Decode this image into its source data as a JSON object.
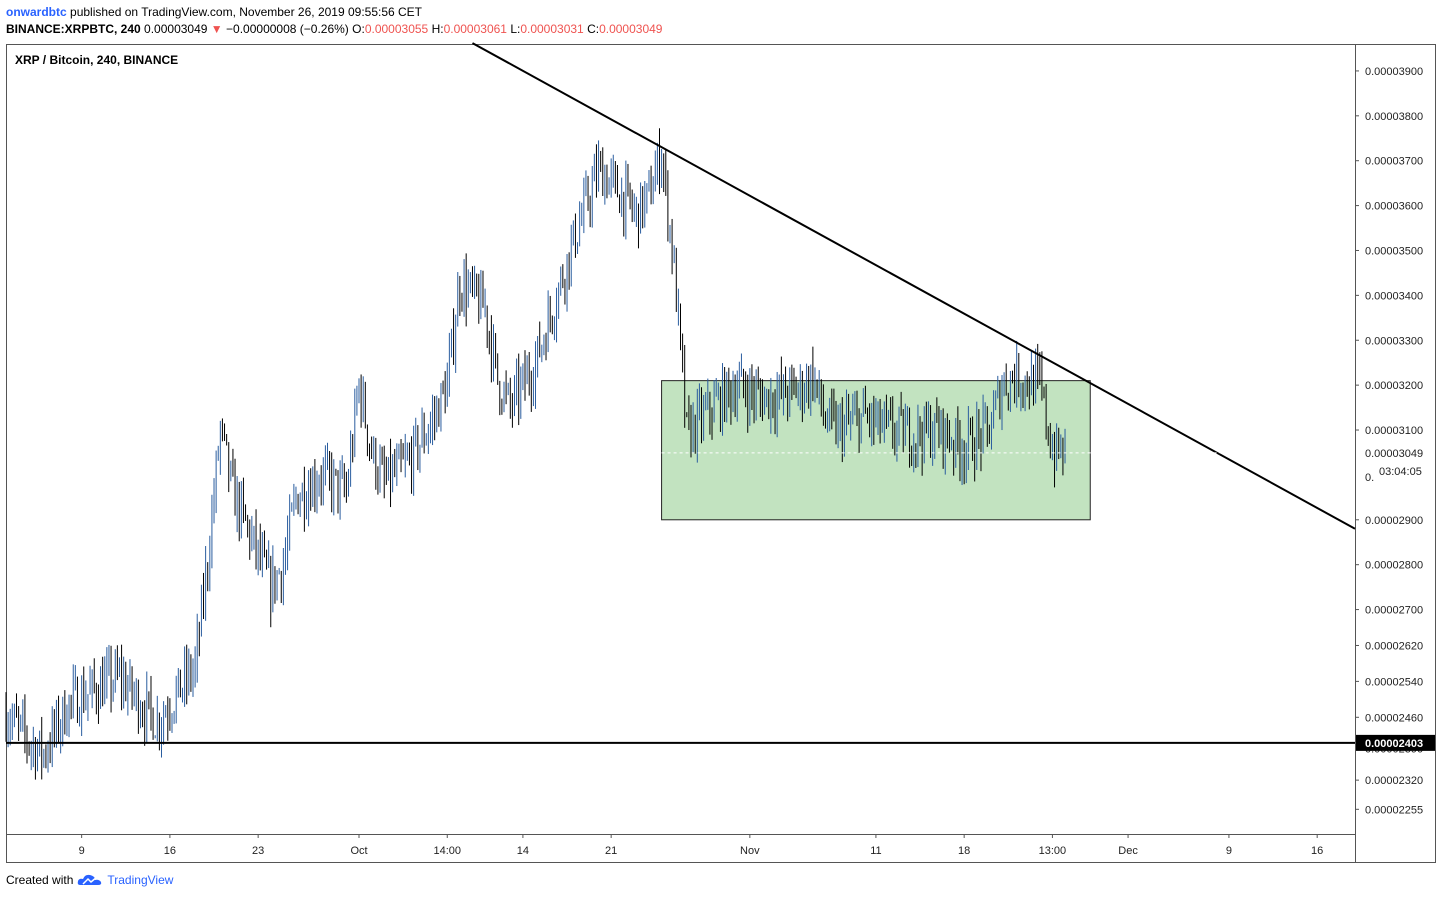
{
  "header": {
    "author": "onwardbtc",
    "published": "published on TradingView.com, November 26, 2019 09:55:56 CET",
    "symbol": "BINANCE:XRPBTC, 240",
    "last": "0.00003049",
    "change": "−0.00000008 (−0.26%)",
    "o_label": "O:",
    "o_value": "0.00003055",
    "h_label": "H:",
    "h_value": "0.00003061",
    "l_label": "L:",
    "l_value": "0.00003031",
    "c_label": "C:",
    "c_value": "0.00003049"
  },
  "footer": {
    "created_with": "Created with",
    "brand": "TradingView"
  },
  "colors": {
    "up": "#2a5d9f",
    "down": "#000000",
    "box_fill": "#c2e3c0",
    "accent": "#ef5350"
  },
  "chart_data": {
    "type": "candlestick",
    "title": "XRP / Bitcoin, 240, BINANCE",
    "ylim": [
      2.2e-05,
      3.96e-05
    ],
    "x_range": [
      "2019-09-03",
      "2019-12-19"
    ],
    "y_ticks": [
      "0.00003900",
      "0.00003800",
      "0.00003700",
      "0.00003600",
      "0.00003500",
      "0.00003400",
      "0.00003300",
      "0.00003200",
      "0.00003100",
      "0.00002900",
      "0.00002800",
      "0.00002700",
      "0.00002620",
      "0.00002540",
      "0.00002460",
      "0.00002390",
      "0.00002320",
      "0.00002255"
    ],
    "y_tick_values": [
      3.9e-05,
      3.8e-05,
      3.7e-05,
      3.6e-05,
      3.5e-05,
      3.4e-05,
      3.3e-05,
      3.2e-05,
      3.1e-05,
      2.9e-05,
      2.8e-05,
      2.7e-05,
      2.62e-05,
      2.54e-05,
      2.46e-05,
      2.39e-05,
      2.32e-05,
      2.255e-05
    ],
    "x_ticks": [
      "9",
      "16",
      "23",
      "Oct",
      "14:00",
      "14",
      "21",
      "Nov",
      "11",
      "18",
      "13:00",
      "Dec",
      "9",
      "16"
    ],
    "x_tick_dates": [
      "2019-09-09",
      "2019-09-16",
      "2019-09-23",
      "2019-10-01",
      "2019-10-08",
      "2019-10-14",
      "2019-10-21",
      "2019-11-01",
      "2019-11-11",
      "2019-11-18",
      "2019-11-25",
      "2019-12-01",
      "2019-12-09",
      "2019-12-16"
    ],
    "current_price": {
      "value": 3.049e-05,
      "label": "0.00003049",
      "countdown": "03:04:05",
      "hidden_label": "0."
    },
    "support_line": {
      "value": 2.403e-05,
      "label": "0.00002403"
    },
    "trendline": {
      "from": {
        "date": "2019-10-10",
        "price": 3.962e-05
      },
      "to": {
        "date": "2019-12-19",
        "price": 2.88e-05
      }
    },
    "range_box": {
      "from_date": "2019-10-25",
      "to_date": "2019-11-28",
      "top": 3.21e-05,
      "bottom": 2.9e-05
    },
    "price_path": [
      [
        "2019-09-03",
        2.47e-05
      ],
      [
        "2019-09-05",
        2.4e-05
      ],
      [
        "2019-09-06",
        2.38e-05
      ],
      [
        "2019-09-08",
        2.49e-05
      ],
      [
        "2019-09-10",
        2.52e-05
      ],
      [
        "2019-09-12",
        2.55e-05
      ],
      [
        "2019-09-14",
        2.48e-05
      ],
      [
        "2019-09-15",
        2.45e-05
      ],
      [
        "2019-09-17",
        2.53e-05
      ],
      [
        "2019-09-18",
        2.57e-05
      ],
      [
        "2019-09-19",
        2.81e-05
      ],
      [
        "2019-09-20",
        3.1e-05
      ],
      [
        "2019-09-21",
        2.96e-05
      ],
      [
        "2019-09-22",
        2.89e-05
      ],
      [
        "2019-09-24",
        2.75e-05
      ],
      [
        "2019-09-25",
        2.8e-05
      ],
      [
        "2019-09-26",
        2.95e-05
      ],
      [
        "2019-09-28",
        3e-05
      ],
      [
        "2019-09-30",
        2.96e-05
      ],
      [
        "2019-10-01",
        3.2e-05
      ],
      [
        "2019-10-02",
        3.05e-05
      ],
      [
        "2019-10-03",
        2.98e-05
      ],
      [
        "2019-10-05",
        3.03e-05
      ],
      [
        "2019-10-07",
        3.13e-05
      ],
      [
        "2019-10-08",
        3.2e-05
      ],
      [
        "2019-10-09",
        3.43e-05
      ],
      [
        "2019-10-11",
        3.37e-05
      ],
      [
        "2019-10-12",
        3.21e-05
      ],
      [
        "2019-10-13",
        3.15e-05
      ],
      [
        "2019-10-15",
        3.25e-05
      ],
      [
        "2019-10-17",
        3.43e-05
      ],
      [
        "2019-10-18",
        3.52e-05
      ],
      [
        "2019-10-20",
        3.68e-05
      ],
      [
        "2019-10-21",
        3.65e-05
      ],
      [
        "2019-10-23",
        3.58e-05
      ],
      [
        "2019-10-24",
        3.62e-05
      ],
      [
        "2019-10-25",
        3.72e-05
      ],
      [
        "2019-10-26",
        3.46e-05
      ],
      [
        "2019-10-27",
        3.09e-05
      ],
      [
        "2019-10-29",
        3.15e-05
      ],
      [
        "2019-10-31",
        3.2e-05
      ],
      [
        "2019-11-02",
        3.17e-05
      ],
      [
        "2019-11-05",
        3.19e-05
      ],
      [
        "2019-11-06",
        3.22e-05
      ],
      [
        "2019-11-07",
        3.12e-05
      ],
      [
        "2019-11-08",
        3.1e-05
      ],
      [
        "2019-11-10",
        3.13e-05
      ],
      [
        "2019-11-12",
        3.1e-05
      ],
      [
        "2019-11-14",
        3.09e-05
      ],
      [
        "2019-11-16",
        3.1e-05
      ],
      [
        "2019-11-18",
        3.06e-05
      ],
      [
        "2019-11-20",
        3.1e-05
      ],
      [
        "2019-11-21",
        3.2e-05
      ],
      [
        "2019-11-22",
        3.22e-05
      ],
      [
        "2019-11-24",
        3.2e-05
      ],
      [
        "2019-11-25",
        3.05e-05
      ],
      [
        "2019-11-26",
        3.05e-05
      ]
    ]
  }
}
